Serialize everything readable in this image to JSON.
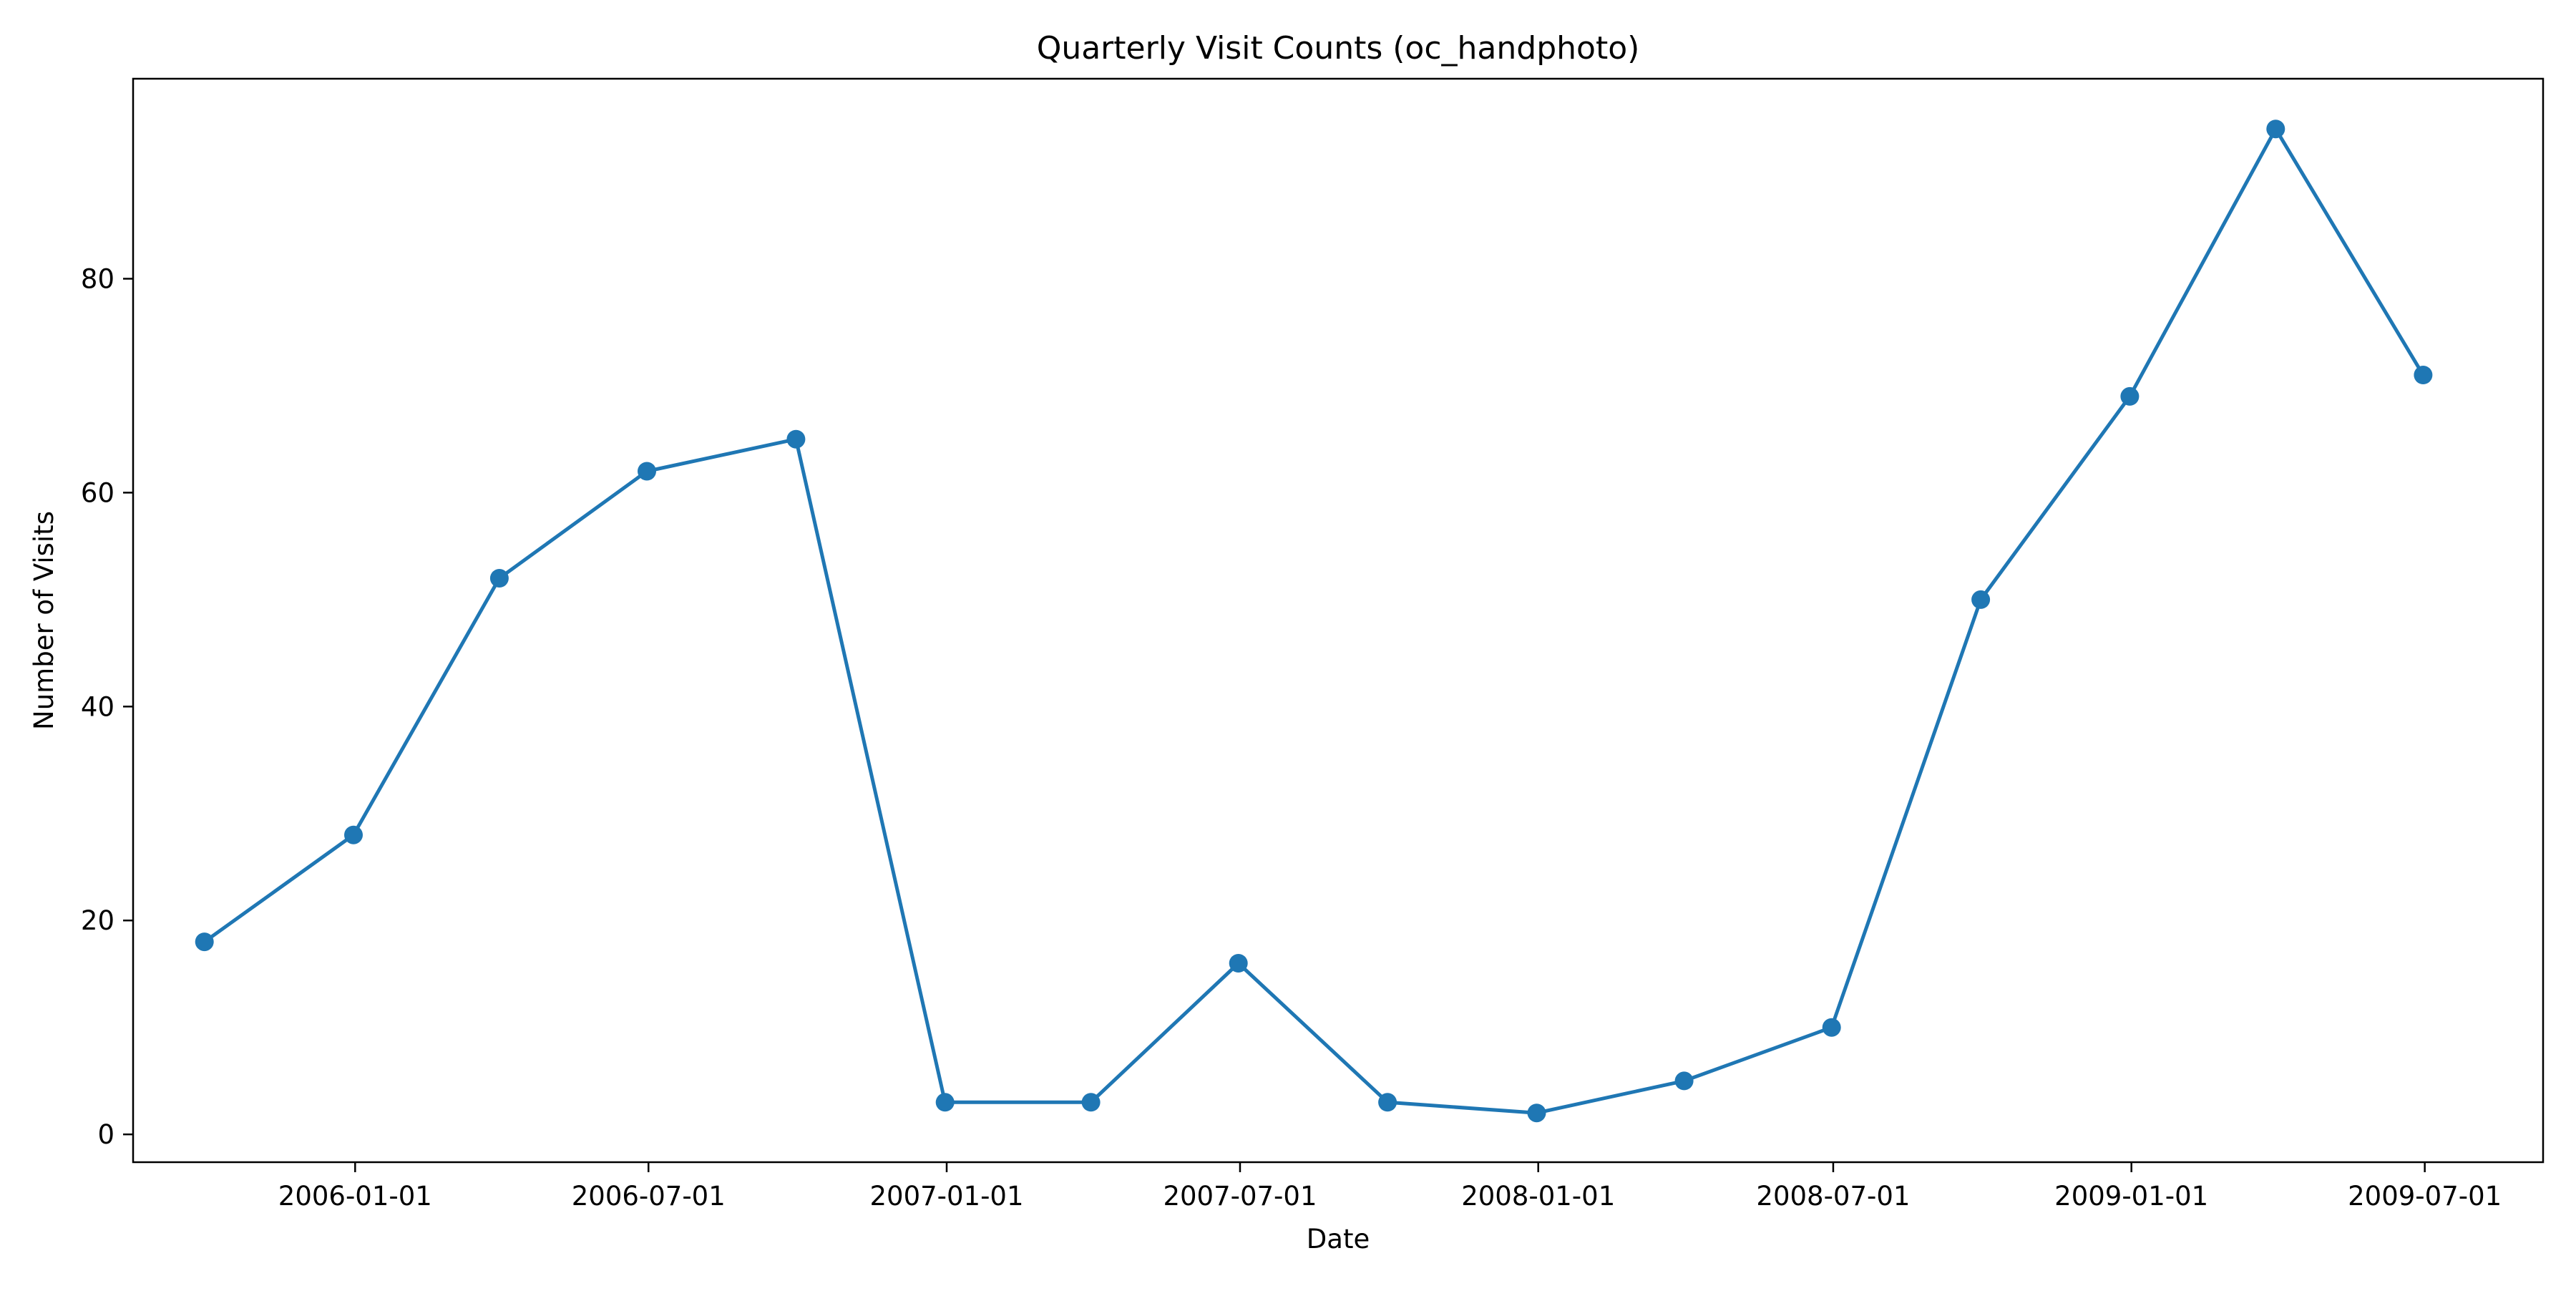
{
  "chart_data": {
    "type": "line",
    "title": "Quarterly Visit Counts (oc_handphoto)",
    "xlabel": "Date",
    "ylabel": "Number of Visits",
    "x_ticks": [
      "2006-01-01",
      "2006-07-01",
      "2007-01-01",
      "2007-07-01",
      "2008-01-01",
      "2008-07-01",
      "2009-01-01",
      "2009-07-01"
    ],
    "y_ticks": [
      0,
      20,
      40,
      60,
      80
    ],
    "xlim": [
      "2005-08-17",
      "2009-09-12"
    ],
    "ylim": [
      -2.6,
      98.7
    ],
    "grid": false,
    "legend": "none",
    "colors": {
      "series": "#1f77b4"
    },
    "series": [
      {
        "x": [
          "2005-09-30",
          "2005-12-31",
          "2006-03-31",
          "2006-06-30",
          "2006-09-30",
          "2006-12-31",
          "2007-03-31",
          "2007-06-30",
          "2007-09-30",
          "2007-12-31",
          "2008-03-31",
          "2008-06-30",
          "2008-09-30",
          "2008-12-31",
          "2009-03-31",
          "2009-06-30"
        ],
        "values": [
          18,
          28,
          52,
          62,
          65,
          3,
          3,
          16,
          3,
          2,
          5,
          10,
          50,
          69,
          94,
          71
        ]
      }
    ]
  }
}
